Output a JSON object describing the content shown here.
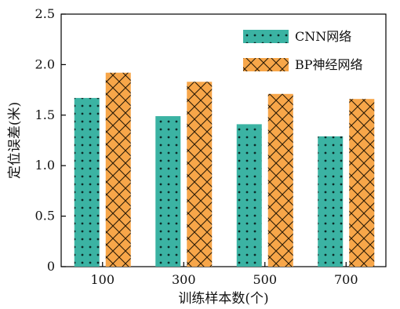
{
  "chart_data": {
    "type": "bar",
    "categories": [
      "100",
      "300",
      "500",
      "700"
    ],
    "series": [
      {
        "name": "CNN网络",
        "values": [
          1.67,
          1.49,
          1.41,
          1.29
        ],
        "color": "#3bb3a3",
        "pattern": "dots"
      },
      {
        "name": "BP神经网络",
        "values": [
          1.92,
          1.83,
          1.71,
          1.66
        ],
        "color": "#f7a649",
        "pattern": "crosshatch"
      }
    ],
    "title": "",
    "xlabel": "训练样本数(个)",
    "ylabel": "定位误差(米)",
    "ylim": [
      0,
      2.5
    ],
    "yticks": [
      "0",
      "0.5",
      "1.0",
      "1.5",
      "2.0",
      "2.5"
    ],
    "grid": false,
    "legend_position": "top-right"
  }
}
